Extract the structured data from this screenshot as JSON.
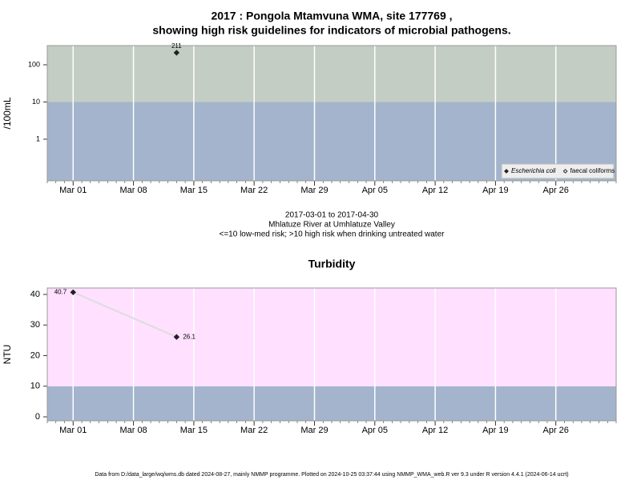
{
  "chart_data": [
    {
      "type": "scatter",
      "title": [
        "2017 : Pongola Mtamvuna WMA, site 177769 ,",
        "showing high risk guidelines for indicators of microbial pathogens."
      ],
      "ylabel": "/100mL",
      "log_scale": true,
      "ylim": [
        0.076,
        328
      ],
      "yticks": [
        1,
        10,
        100
      ],
      "xlim": [
        "Feb 26",
        "May 03"
      ],
      "xticks": [
        "Mar 01",
        "Mar 08",
        "Mar 15",
        "Mar 22",
        "Mar 29",
        "Apr 05",
        "Apr 12",
        "Apr 19",
        "Apr 26"
      ],
      "grid": true,
      "threshold": 10,
      "band_colors": [
        "#a3b4cc",
        "#c4cdc4"
      ],
      "legend": "bottom-right",
      "series": [
        {
          "name": "Escherichia coli",
          "color": "#222222",
          "filled": true,
          "x": [
            "Mar 13"
          ],
          "values": [
            211
          ]
        },
        {
          "name": "faecal coliforms",
          "color": "#222222",
          "filled": false,
          "x": [],
          "values": []
        }
      ],
      "notes": [
        "2017-03-01 to 2017-04-30",
        "Mhlatuze River at Umhlatuze Valley",
        "<=10 low-med risk; >10 high risk when drinking untreated water"
      ]
    },
    {
      "type": "line",
      "title": [
        "Turbidity"
      ],
      "ylabel": "NTU",
      "log_scale": false,
      "ylim": [
        -1.3,
        42.1
      ],
      "yticks": [
        0,
        10,
        20,
        30,
        40
      ],
      "xlim": [
        "Feb 26",
        "May 03"
      ],
      "xticks": [
        "Mar 01",
        "Mar 08",
        "Mar 15",
        "Mar 22",
        "Mar 29",
        "Apr 05",
        "Apr 12",
        "Apr 19",
        "Apr 26"
      ],
      "grid": true,
      "threshold": 10,
      "band_colors": [
        "#a3b4cc",
        "#ffe0ff"
      ],
      "line_color": "#dddddd",
      "series": [
        {
          "color": "#222222",
          "filled": true,
          "x": [
            "Mar 01",
            "Mar 13"
          ],
          "values": [
            40.7,
            26.1
          ]
        }
      ]
    }
  ],
  "footer": "Data from D:/data_large/wq/wms.db dated 2024-08-27, mainly NMMP programme. Plotted on 2024-10-25 03:37:44 using NMMP_WMA_web.R ver 9.3 under R version 4.4.1 (2024-06-14 ucrt)"
}
